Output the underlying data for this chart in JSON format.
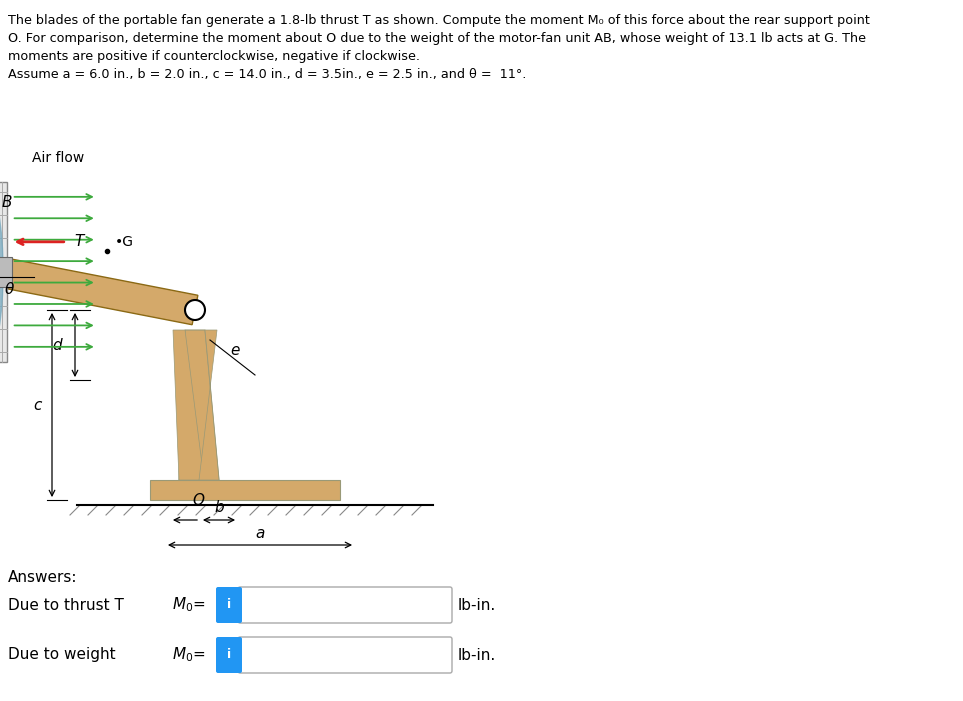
{
  "title_line1": "The blades of the portable fan generate a 1.8-lb thrust T as shown. Compute the moment M₀ of this force about the rear support point",
  "title_line2": "O. For comparison, determine the moment about O due to the weight of the motor-fan unit AB, whose weight of 13.1 lb acts at G. The",
  "title_line3": "moments are positive if counterclockwise, negative if clockwise.",
  "title_line4": "Assume a = 6.0 in., b = 2.0 in., c = 14.0 in., d = 3.5in., e = 2.5 in., and θ =  11°.",
  "answers_label": "Answers:",
  "row1_label": "Due to thrust T",
  "row1_mo": "M₀=",
  "row2_label": "Due to weight",
  "row2_mo": "M₀=",
  "unit": "lb-in.",
  "bg_color": "#ffffff",
  "text_color": "#000000",
  "button_color": "#2196F3",
  "fan_tan": "#d4a96a",
  "fan_tan_dark": "#b8892a",
  "fan_blade_color": "#7aaabf",
  "fan_cage_color": "#d8d8d8",
  "arrow_color": "#3daa3d",
  "thrust_color": "#dd2222",
  "ground_color": "#b09060",
  "ground_hatch": "#888866"
}
